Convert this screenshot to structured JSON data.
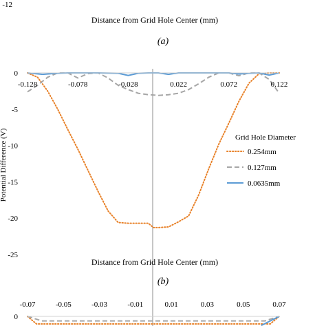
{
  "top_fragment": {
    "y_tick": "-12",
    "xlabel": "Distance from Grid Hole Center (mm)",
    "panel_label": "(a)"
  },
  "chart_data": [
    {
      "type": "line",
      "panel_label": "(b)",
      "xlabel": "Distance from Grid Hole Center (mm)",
      "ylabel": "Potential Difference (V)",
      "xlim": [
        -0.128,
        0.122
      ],
      "ylim": [
        -25,
        0
      ],
      "x_ticks": [
        "-0.128",
        "-0.078",
        "-0.028",
        "0.022",
        "0.072",
        "0.122"
      ],
      "y_ticks": [
        "0",
        "-5",
        "-10",
        "-15",
        "-20",
        "-25"
      ],
      "legend": {
        "title": "Grid Hole Diameter",
        "placement": "right"
      },
      "series": [
        {
          "name": "0.254mm",
          "style": "dotted",
          "color": "#e8822a",
          "x": [
            -0.128,
            -0.118,
            -0.108,
            -0.098,
            -0.088,
            -0.078,
            -0.068,
            -0.058,
            -0.048,
            -0.038,
            -0.028,
            -0.018,
            -0.008,
            -0.003,
            0.002,
            0.012,
            0.022,
            0.032,
            0.042,
            0.052,
            0.062,
            0.072,
            0.082,
            0.092,
            0.102,
            0.112,
            0.122
          ],
          "y": [
            0,
            -0.6,
            -2.5,
            -5.0,
            -7.8,
            -10.5,
            -13.4,
            -16.3,
            -19.0,
            -20.6,
            -20.7,
            -20.7,
            -20.7,
            -21.3,
            -21.3,
            -21.2,
            -20.5,
            -19.7,
            -16.8,
            -13.2,
            -9.8,
            -6.9,
            -3.9,
            -1.4,
            -0.1,
            0,
            0
          ]
        },
        {
          "name": "0.127mm",
          "style": "dashed",
          "color": "#a6a6a6",
          "x": [
            -0.128,
            -0.118,
            -0.108,
            -0.098,
            -0.088,
            -0.078,
            -0.068,
            -0.058,
            -0.048,
            -0.038,
            -0.028,
            -0.018,
            -0.008,
            0.002,
            0.012,
            0.022,
            0.032,
            0.042,
            0.052,
            0.062,
            0.072,
            0.082,
            0.092,
            0.102,
            0.112,
            0.122
          ],
          "y": [
            -2.6,
            -1.7,
            -0.6,
            0,
            0,
            -0.7,
            -0.1,
            0,
            -0.7,
            -1.7,
            -2.3,
            -2.8,
            -3.0,
            -3.1,
            -3.0,
            -2.8,
            -2.3,
            -1.5,
            -0.6,
            0,
            0,
            -0.4,
            0,
            0,
            -0.9,
            -2.8
          ]
        },
        {
          "name": "0.0635mm",
          "style": "solid",
          "color": "#5b9bd5",
          "x": [
            -0.128,
            -0.113,
            -0.098,
            -0.088,
            -0.078,
            -0.058,
            -0.038,
            -0.028,
            -0.018,
            -0.008,
            0.002,
            0.012,
            0.022,
            0.042,
            0.062,
            0.072,
            0.082,
            0.092,
            0.102,
            0.112,
            0.122
          ],
          "y": [
            0,
            -0.2,
            -0.05,
            0,
            0,
            0,
            -0.05,
            -0.35,
            -0.05,
            0,
            0,
            -0.2,
            0,
            0,
            0,
            0,
            -0.15,
            -0.05,
            0,
            -0.3,
            0
          ]
        }
      ]
    },
    {
      "type": "line",
      "panel_label": "",
      "x_ticks": [
        "-0.07",
        "-0.05",
        "-0.03",
        "-0.01",
        "0.01",
        "0.03",
        "0.05",
        "0.07"
      ],
      "y_ticks": [
        "0"
      ],
      "series": [
        {
          "name": "0.254mm",
          "color": "#e8822a",
          "style": "dotted",
          "x": [
            -0.07,
            -0.065,
            0.065,
            0.07
          ],
          "y": [
            0,
            -0.5,
            -0.5,
            0
          ]
        },
        {
          "name": "0.127mm",
          "color": "#a6a6a6",
          "style": "dashed",
          "x": [
            -0.07,
            -0.062,
            0.062,
            0.07
          ],
          "y": [
            0,
            -0.3,
            -0.3,
            0
          ]
        },
        {
          "name": "0.0635mm",
          "color": "#5b9bd5",
          "style": "solid",
          "x": [
            0.06,
            0.07
          ],
          "y": [
            -0.6,
            0
          ]
        }
      ]
    }
  ]
}
